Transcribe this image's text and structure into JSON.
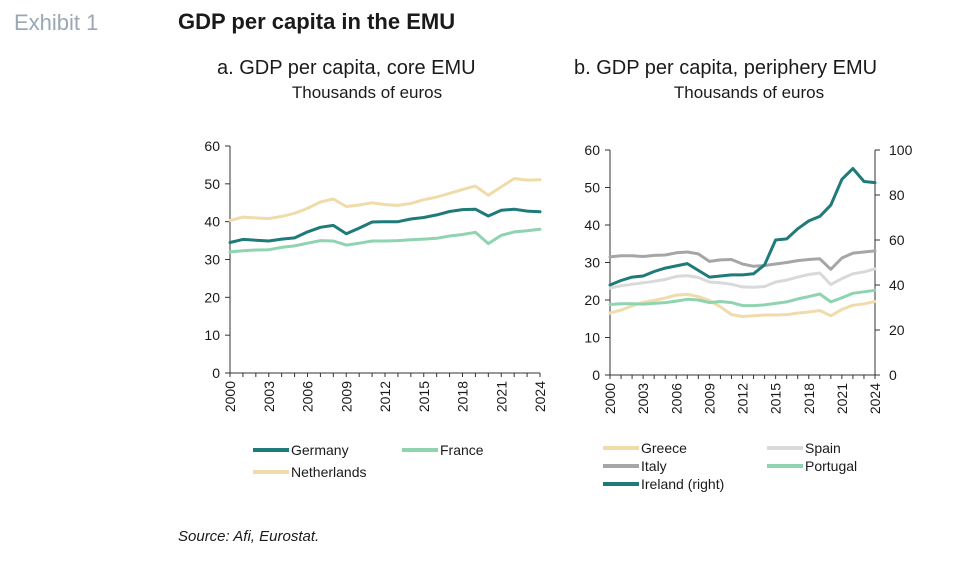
{
  "header": {
    "exhibit": "Exhibit 1",
    "title": "GDP per capita in the EMU"
  },
  "source": "Source: Afi, Eurostat.",
  "colors": {
    "Germany": "#1f7a7a",
    "France": "#8fd4b0",
    "Netherlands": "#f0dcaa",
    "Greece": "#f0dcaa",
    "Spain": "#d9d9d9",
    "Italy": "#a6a6a6",
    "Portugal": "#8fd4b0",
    "Ireland": "#1f7a7a"
  },
  "chart_data": [
    {
      "type": "line",
      "title": "a. GDP per capita, core EMU",
      "subtitle": "Thousands of euros",
      "x": [
        2000,
        2001,
        2002,
        2003,
        2004,
        2005,
        2006,
        2007,
        2008,
        2009,
        2010,
        2011,
        2012,
        2013,
        2014,
        2015,
        2016,
        2017,
        2018,
        2019,
        2020,
        2021,
        2022,
        2023,
        2024
      ],
      "xticks": [
        "2000",
        "2003",
        "2006",
        "2009",
        "2012",
        "2015",
        "2018",
        "2021",
        "2024"
      ],
      "ylim": [
        0,
        60
      ],
      "yticks": [
        "0",
        "10",
        "20",
        "30",
        "40",
        "50",
        "60"
      ],
      "legend_position": "bottom",
      "series": [
        {
          "name": "Germany",
          "values": [
            34.5,
            35.3,
            35.1,
            34.9,
            35.4,
            35.7,
            37.3,
            38.5,
            39,
            36.8,
            38.3,
            39.9,
            40,
            40,
            40.7,
            41.1,
            41.8,
            42.7,
            43.2,
            43.3,
            41.5,
            43,
            43.3,
            42.8,
            42.6
          ]
        },
        {
          "name": "France",
          "values": [
            32,
            32.3,
            32.5,
            32.6,
            33.2,
            33.6,
            34.3,
            35,
            34.9,
            33.8,
            34.3,
            34.9,
            34.9,
            35,
            35.2,
            35.4,
            35.6,
            36.2,
            36.6,
            37.2,
            34.2,
            36.4,
            37.3,
            37.6,
            38
          ]
        },
        {
          "name": "Netherlands",
          "values": [
            40.3,
            41.2,
            41,
            40.8,
            41.4,
            42.2,
            43.5,
            45.2,
            46,
            44,
            44.4,
            45,
            44.5,
            44.3,
            44.8,
            45.8,
            46.5,
            47.5,
            48.5,
            49.4,
            47,
            49.2,
            51.4,
            51,
            51.1
          ]
        }
      ]
    },
    {
      "type": "line",
      "title": "b. GDP per capita, periphery EMU",
      "subtitle": "Thousands of euros",
      "x": [
        2000,
        2001,
        2002,
        2003,
        2004,
        2005,
        2006,
        2007,
        2008,
        2009,
        2010,
        2011,
        2012,
        2013,
        2014,
        2015,
        2016,
        2017,
        2018,
        2019,
        2020,
        2021,
        2022,
        2023,
        2024
      ],
      "xticks": [
        "2000",
        "2003",
        "2006",
        "2009",
        "2012",
        "2015",
        "2018",
        "2021",
        "2024"
      ],
      "ylim": [
        0,
        60
      ],
      "yticks": [
        "0",
        "10",
        "20",
        "30",
        "40",
        "50",
        "60"
      ],
      "y2lim": [
        0,
        100
      ],
      "y2ticks": [
        "0",
        "20",
        "40",
        "60",
        "80",
        "100"
      ],
      "legend_position": "bottom",
      "series": [
        {
          "name": "Greece",
          "axis": "left",
          "values": [
            16.5,
            17.3,
            18.4,
            19.4,
            19.9,
            20.5,
            21.3,
            21.5,
            20.9,
            19.9,
            18.2,
            16.1,
            15.6,
            15.8,
            16,
            16,
            16.1,
            16.5,
            16.8,
            17.2,
            15.8,
            17.5,
            18.6,
            19,
            19.6
          ]
        },
        {
          "name": "Spain",
          "axis": "left",
          "values": [
            23.2,
            23.8,
            24.2,
            24.6,
            25,
            25.5,
            26.3,
            26.5,
            26,
            24.8,
            24.6,
            24.2,
            23.5,
            23.4,
            23.6,
            24.8,
            25.3,
            26.1,
            26.8,
            27.2,
            24.1,
            25.7,
            27,
            27.5,
            28.3
          ]
        },
        {
          "name": "Italy",
          "axis": "left",
          "values": [
            31.5,
            31.8,
            31.8,
            31.6,
            31.9,
            32,
            32.6,
            32.8,
            32.3,
            30.3,
            30.7,
            30.8,
            29.6,
            29,
            29.2,
            29.6,
            30,
            30.5,
            30.8,
            31,
            28.2,
            31.2,
            32.5,
            32.8,
            33.1
          ]
        },
        {
          "name": "Portugal",
          "axis": "left",
          "values": [
            18.8,
            19,
            19,
            18.9,
            19.1,
            19.3,
            19.7,
            20.2,
            20,
            19.3,
            19.6,
            19.3,
            18.5,
            18.5,
            18.7,
            19.1,
            19.5,
            20.3,
            20.9,
            21.6,
            19.5,
            20.6,
            21.8,
            22.2,
            22.6
          ]
        },
        {
          "name": "Ireland (right)",
          "axis": "right",
          "values": [
            40,
            42,
            43.5,
            44,
            46,
            47.5,
            48.5,
            49.5,
            46.5,
            43.5,
            44,
            44.5,
            44.5,
            45,
            49,
            60,
            60.5,
            65,
            68.5,
            70.5,
            75.5,
            87,
            91.8,
            86,
            85.5
          ]
        }
      ]
    }
  ],
  "legend_a": [
    "Germany",
    "France",
    "Netherlands"
  ],
  "legend_b": [
    "Greece",
    "Spain",
    "Italy",
    "Portugal",
    "Ireland (right)"
  ]
}
